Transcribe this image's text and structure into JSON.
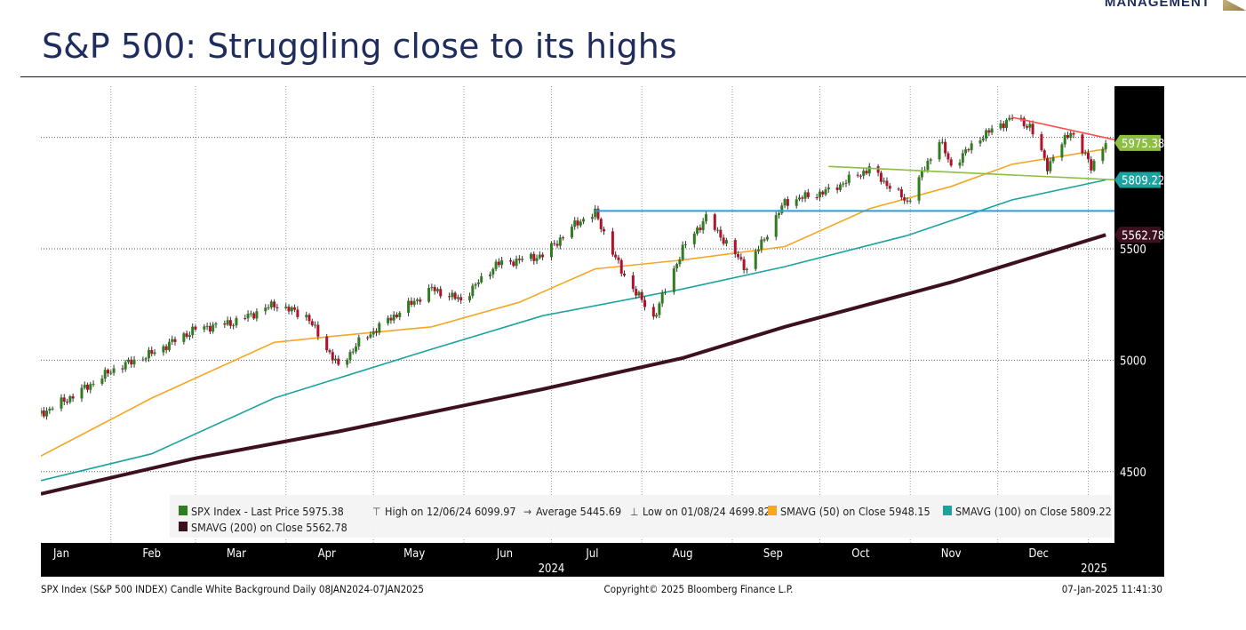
{
  "page": {
    "brand": "MANAGEMENT",
    "title": "S&P 500: Struggling close to its highs"
  },
  "colors": {
    "candle_up": "#2e7d1e",
    "candle_down": "#b0122a",
    "sma50": "#f5a623",
    "sma100": "#1aa39f",
    "sma200": "#3d1020",
    "resistance": "#ff4d4d",
    "trend": "#8cbf3f",
    "support": "#2d9be0",
    "axis_bg": "#000000"
  },
  "chart_data": {
    "type": "candlestick",
    "title": "S&P 500: Struggling close to its highs",
    "x_range": [
      "2024-01-08",
      "2025-01-07"
    ],
    "ylim": [
      4180,
      6230
    ],
    "y_ticks": [
      4500,
      5000,
      5500
    ],
    "y_tick_labels": [
      "4500",
      "5000",
      "5500"
    ],
    "x_months": [
      "Jan",
      "Feb",
      "Mar",
      "Apr",
      "May",
      "Jun",
      "Jul",
      "Aug",
      "Sep",
      "Oct",
      "Nov",
      "Dec"
    ],
    "x_year_label": "2024",
    "x_next_year_label": "2025",
    "grid": true,
    "legend_position": "bottom-left",
    "price_path": [
      [
        "2024-01-08",
        4760
      ],
      [
        "2024-01-19",
        4840
      ],
      [
        "2024-02-02",
        4960
      ],
      [
        "2024-02-15",
        5030
      ],
      [
        "2024-03-01",
        5140
      ],
      [
        "2024-03-14",
        5170
      ],
      [
        "2024-03-28",
        5250
      ],
      [
        "2024-04-08",
        5200
      ],
      [
        "2024-04-19",
        4970
      ],
      [
        "2024-04-26",
        5080
      ],
      [
        "2024-05-06",
        5180
      ],
      [
        "2024-05-21",
        5320
      ],
      [
        "2024-05-31",
        5270
      ],
      [
        "2024-06-12",
        5430
      ],
      [
        "2024-06-28",
        5470
      ],
      [
        "2024-07-10",
        5620
      ],
      [
        "2024-07-16",
        5660
      ],
      [
        "2024-07-25",
        5400
      ],
      [
        "2024-08-05",
        5190
      ],
      [
        "2024-08-15",
        5500
      ],
      [
        "2024-08-23",
        5640
      ],
      [
        "2024-09-06",
        5410
      ],
      [
        "2024-09-19",
        5710
      ],
      [
        "2024-10-04",
        5760
      ],
      [
        "2024-10-18",
        5860
      ],
      [
        "2024-10-31",
        5710
      ],
      [
        "2024-11-11",
        5990
      ],
      [
        "2024-11-15",
        5870
      ],
      [
        "2024-11-25",
        6000
      ],
      [
        "2024-12-06",
        6090
      ],
      [
        "2024-12-12",
        6050
      ],
      [
        "2024-12-18",
        5870
      ],
      [
        "2024-12-26",
        6030
      ],
      [
        "2025-01-02",
        5870
      ],
      [
        "2025-01-07",
        5975.38
      ]
    ],
    "sma50": [
      [
        "2024-01-08",
        4570
      ],
      [
        "2024-02-15",
        4830
      ],
      [
        "2024-03-28",
        5080
      ],
      [
        "2024-04-19",
        5110
      ],
      [
        "2024-05-21",
        5150
      ],
      [
        "2024-06-20",
        5260
      ],
      [
        "2024-07-16",
        5410
      ],
      [
        "2024-08-15",
        5450
      ],
      [
        "2024-09-19",
        5510
      ],
      [
        "2024-10-18",
        5680
      ],
      [
        "2024-11-15",
        5780
      ],
      [
        "2024-12-06",
        5880
      ],
      [
        "2025-01-07",
        5948.15
      ]
    ],
    "sma100": [
      [
        "2024-01-08",
        4460
      ],
      [
        "2024-02-15",
        4580
      ],
      [
        "2024-03-28",
        4830
      ],
      [
        "2024-05-21",
        5050
      ],
      [
        "2024-06-28",
        5200
      ],
      [
        "2024-08-15",
        5320
      ],
      [
        "2024-09-19",
        5420
      ],
      [
        "2024-10-31",
        5560
      ],
      [
        "2024-12-06",
        5720
      ],
      [
        "2025-01-07",
        5809.22
      ]
    ],
    "sma200": [
      [
        "2024-01-08",
        4400
      ],
      [
        "2024-03-01",
        4560
      ],
      [
        "2024-04-19",
        4680
      ],
      [
        "2024-06-28",
        4870
      ],
      [
        "2024-08-15",
        5010
      ],
      [
        "2024-09-19",
        5150
      ],
      [
        "2024-11-15",
        5350
      ],
      [
        "2025-01-07",
        5562.78
      ]
    ],
    "trendlines": [
      {
        "role": "resistance",
        "from": [
          "2024-12-06",
          6090
        ],
        "to": [
          "2025-01-10",
          5990
        ]
      },
      {
        "role": "trend",
        "from": [
          "2024-10-04",
          5870
        ],
        "to": [
          "2025-01-10",
          5810
        ]
      },
      {
        "role": "support",
        "from": [
          "2024-07-16",
          5670
        ],
        "to": [
          "2025-01-10",
          5670
        ]
      }
    ],
    "price_labels": [
      {
        "text": "5975.38",
        "value": 5975.38,
        "color": "#8cbf3f"
      },
      {
        "text": "5809.22",
        "value": 5809.22,
        "color": "#1aa39f"
      },
      {
        "text": "5562.78",
        "value": 5562.78,
        "color": "#3d1020"
      }
    ],
    "legend": [
      {
        "text": "SPX Index - Last Price 5975.38",
        "marker": "square",
        "color": "#2e7d1e"
      },
      {
        "text": "High on 12/06/24 6099.97",
        "marker": "high"
      },
      {
        "text": "Average 5445.69",
        "marker": "avg"
      },
      {
        "text": "Low on 01/08/24 4699.82",
        "marker": "low"
      },
      {
        "text": "SMAVG (50)  on Close 5948.15",
        "marker": "square",
        "color": "#f5a623"
      },
      {
        "text": "SMAVG (100)  on Close 5809.22",
        "marker": "square",
        "color": "#1aa39f"
      },
      {
        "text": "SMAVG (200)  on Close 5562.78",
        "marker": "square",
        "color": "#3d1020"
      }
    ],
    "footer_left": "SPX Index (S&P 500 INDEX) Candle White Background  Daily 08JAN2024-07JAN2025",
    "footer_center": "Copyright© 2025 Bloomberg Finance L.P.",
    "footer_right": "07-Jan-2025 11:41:30"
  }
}
